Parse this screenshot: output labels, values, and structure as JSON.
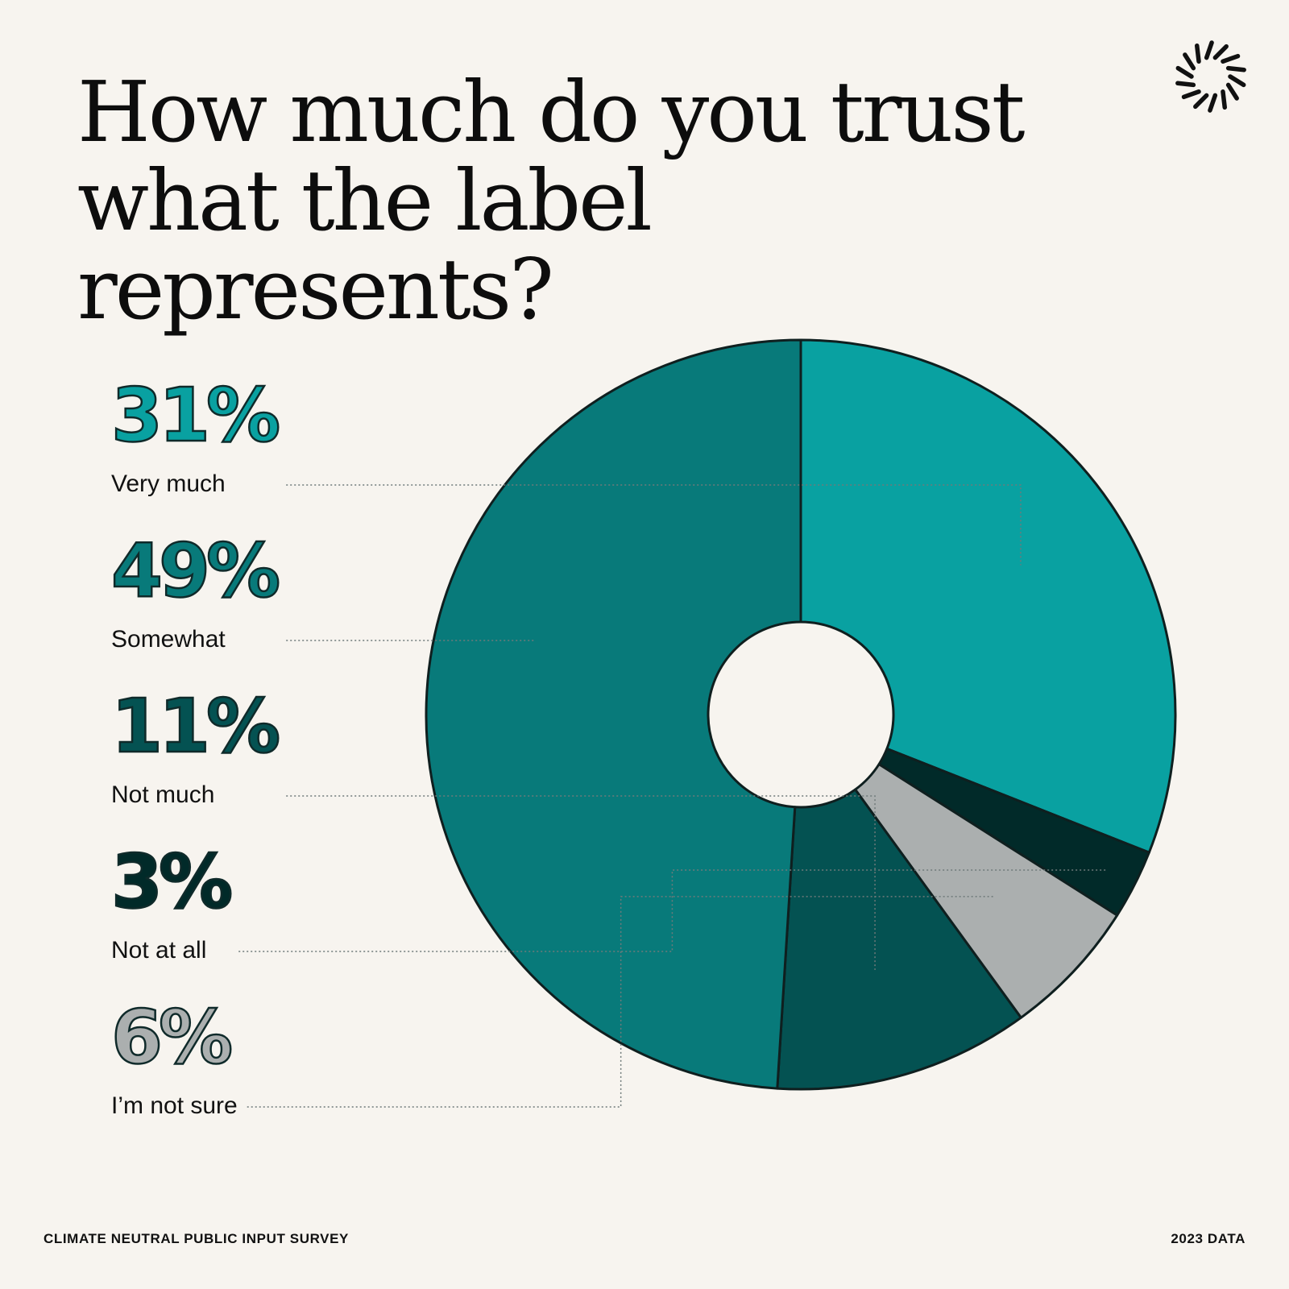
{
  "title_lines": [
    "How much do you trust",
    "what the label represents?"
  ],
  "footer": {
    "left": "CLIMATE NEUTRAL PUBLIC INPUT SURVEY",
    "right": "2023 DATA"
  },
  "logo_icon": "sunburst-logo-icon",
  "chart_data": {
    "type": "pie",
    "donut": true,
    "start": "top",
    "title": "How much do you trust what the label represents?",
    "slices": [
      {
        "label": "Very much",
        "value": 31,
        "display": "31%",
        "color": "#09a1a1"
      },
      {
        "label": "Not at all",
        "value": 3,
        "display": "3%",
        "color": "#012a29"
      },
      {
        "label": "I’m not sure",
        "value": 6,
        "display": "6%",
        "color": "#abafaf"
      },
      {
        "label": "Not much",
        "value": 11,
        "display": "11%",
        "color": "#045252"
      },
      {
        "label": "Somewhat",
        "value": 49,
        "display": "49%",
        "color": "#087a7a"
      }
    ],
    "legend_order": [
      "Very much",
      "Somewhat",
      "Not much",
      "Not at all",
      "I’m not sure"
    ]
  }
}
